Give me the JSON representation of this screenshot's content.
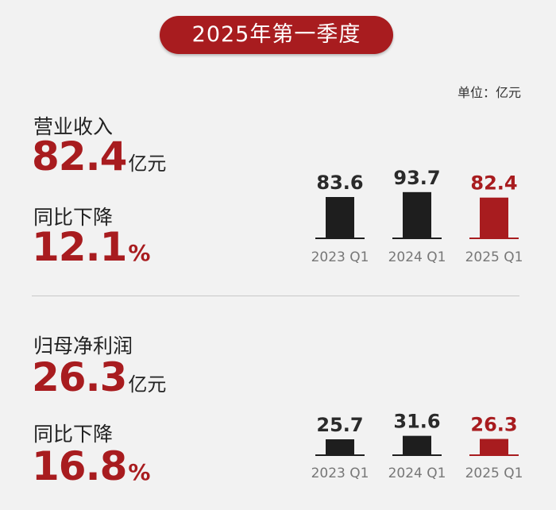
{
  "header": {
    "title": "2025年第一季度",
    "unit_note": "单位：亿元"
  },
  "revenue": {
    "label": "营业收入",
    "value": "82.4",
    "value_unit": "亿元",
    "yoy_label": "同比下降",
    "yoy_value": "12.1",
    "yoy_unit": "%"
  },
  "net_profit": {
    "label": "归母净利润",
    "value": "26.3",
    "value_unit": "亿元",
    "yoy_label": "同比下降",
    "yoy_value": "16.8",
    "yoy_unit": "%"
  },
  "colors": {
    "accent": "#a81c1f",
    "bar": "#1e1e1e",
    "value_text": "#2a2a2a"
  },
  "chart_data": [
    {
      "type": "bar",
      "categories": [
        "2023 Q1",
        "2024 Q1",
        "2025 Q1"
      ],
      "values": [
        83.6,
        93.7,
        82.4
      ],
      "highlight_index": 2,
      "ylabel": "亿元"
    },
    {
      "type": "bar",
      "categories": [
        "2023 Q1",
        "2024 Q1",
        "2025 Q1"
      ],
      "values": [
        25.7,
        31.6,
        26.3
      ],
      "highlight_index": 2,
      "ylabel": "亿元"
    }
  ]
}
